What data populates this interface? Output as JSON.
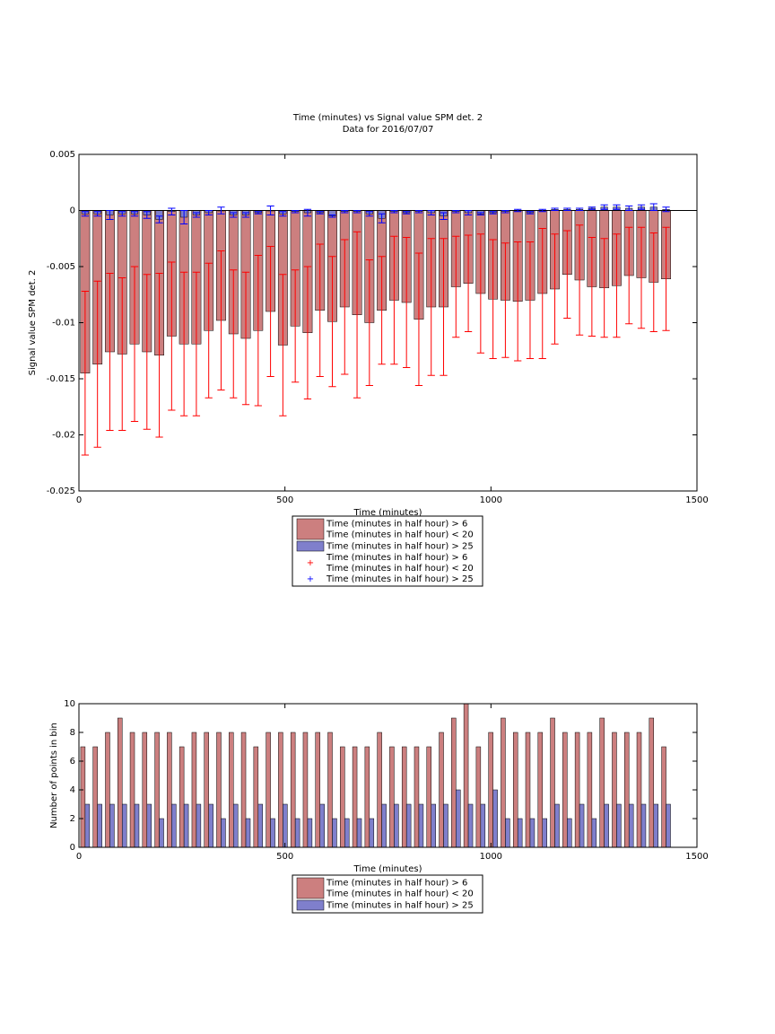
{
  "chart_data": [
    {
      "type": "bar",
      "barmode": "overlay",
      "title": "Time (minutes) vs Signal value SPM det. 2",
      "subtitle": "Data for 2016/07/07",
      "xlabel": "Time (minutes)",
      "ylabel": "Signal value SPM det. 2",
      "x": [
        15,
        45,
        75,
        105,
        135,
        165,
        195,
        225,
        255,
        285,
        315,
        345,
        375,
        405,
        435,
        465,
        495,
        525,
        555,
        585,
        615,
        645,
        675,
        705,
        735,
        765,
        795,
        825,
        855,
        885,
        915,
        945,
        975,
        1005,
        1035,
        1065,
        1095,
        1125,
        1155,
        1185,
        1215,
        1245,
        1275,
        1305,
        1335,
        1365,
        1395,
        1425
      ],
      "xlim": [
        0,
        1500
      ],
      "xticks": [
        0,
        500,
        1000,
        1500
      ],
      "ylim": [
        -0.025,
        0.005
      ],
      "yticks": [
        -0.025,
        -0.02,
        -0.015,
        -0.01,
        -0.005,
        0,
        0.005
      ],
      "zero_line": true,
      "series": [
        {
          "name": "Time (minutes in half hour) > 6\nTime (minutes in half hour) < 20",
          "color": "#cc7f7f",
          "error_color": "#ff0000",
          "values": [
            -0.0145,
            -0.0137,
            -0.0126,
            -0.0128,
            -0.0119,
            -0.0126,
            -0.0129,
            -0.0112,
            -0.0119,
            -0.0119,
            -0.0107,
            -0.0098,
            -0.011,
            -0.0114,
            -0.0107,
            -0.009,
            -0.012,
            -0.0103,
            -0.0109,
            -0.0089,
            -0.0099,
            -0.0086,
            -0.0093,
            -0.01,
            -0.0089,
            -0.008,
            -0.0082,
            -0.0097,
            -0.0086,
            -0.0086,
            -0.0068,
            -0.0065,
            -0.0074,
            -0.0079,
            -0.008,
            -0.0081,
            -0.008,
            -0.0074,
            -0.007,
            -0.0057,
            -0.0062,
            -0.0068,
            -0.0069,
            -0.0067,
            -0.0058,
            -0.006,
            -0.0064,
            -0.0061
          ],
          "errors": [
            0.0073,
            0.0074,
            0.007,
            0.0068,
            0.0069,
            0.0069,
            0.0073,
            0.0066,
            0.0064,
            0.0064,
            0.006,
            0.0062,
            0.0057,
            0.0059,
            0.0067,
            0.0058,
            0.0063,
            0.005,
            0.0059,
            0.0059,
            0.0058,
            0.006,
            0.0074,
            0.0056,
            0.0048,
            0.0057,
            0.0058,
            0.0059,
            0.0061,
            0.0061,
            0.0045,
            0.0043,
            0.0053,
            0.0053,
            0.0051,
            0.0053,
            0.0052,
            0.0058,
            0.0049,
            0.0039,
            0.0049,
            0.0044,
            0.0044,
            0.0046,
            0.0043,
            0.0045,
            0.0044,
            0.0046
          ]
        },
        {
          "name": "Time (minutes in half hour) > 25",
          "color": "#7f7fcc",
          "error_color": "#0000ff",
          "values": [
            -0.0003,
            -0.0003,
            -0.0004,
            -0.0003,
            -0.0003,
            -0.0004,
            -0.0008,
            -0.0001,
            -0.0006,
            -0.0004,
            -0.0002,
            0,
            -0.0004,
            -0.0004,
            -0.0002,
            0,
            -0.0003,
            -0.0001,
            -0.0002,
            -0.0002,
            -0.0005,
            -0.0001,
            -0.0001,
            -0.0003,
            -0.0007,
            -0.0001,
            -0.0002,
            -0.0001,
            -0.0002,
            -0.0005,
            -0.0001,
            -0.0002,
            -0.0003,
            -0.0002,
            -0.0001,
            0,
            -0.0002,
            0,
            0.0001,
            0.0001,
            0.0001,
            0.0002,
            0.0003,
            0.0003,
            0.0002,
            0.0003,
            0.0003,
            0.0001
          ],
          "errors": [
            0.0002,
            0.0002,
            0.0004,
            0.0002,
            0.0002,
            0.0003,
            0.0003,
            0.0003,
            0.0006,
            0.0002,
            0.0002,
            0.0003,
            0.0002,
            0.0002,
            0.0001,
            0.0004,
            0.0002,
            0.0001,
            0.0003,
            0.0001,
            0.0001,
            0.0001,
            0.0001,
            0.0002,
            0.0004,
            0.0001,
            0.0001,
            0.0001,
            0.0002,
            0.0003,
            0.0001,
            0.0002,
            0.0001,
            0.0001,
            0.0001,
            0.0001,
            0.0001,
            0.0001,
            0.0001,
            0.0001,
            0.0001,
            0.0001,
            0.0002,
            0.0002,
            0.0002,
            0.0002,
            0.0003,
            0.0002
          ]
        }
      ],
      "errorbar_legend": [
        {
          "name": "Time (minutes in half hour) > 6\nTime (minutes in half hour) < 20",
          "color": "#ff0000",
          "marker": "+"
        },
        {
          "name": "Time (minutes in half hour) > 25",
          "color": "#0000ff",
          "marker": "+"
        }
      ]
    },
    {
      "type": "bar",
      "barmode": "group",
      "xlabel": "Time (minutes)",
      "ylabel": "Number of points in bin",
      "x": [
        15,
        45,
        75,
        105,
        135,
        165,
        195,
        225,
        255,
        285,
        315,
        345,
        375,
        405,
        435,
        465,
        495,
        525,
        555,
        585,
        615,
        645,
        675,
        705,
        735,
        765,
        795,
        825,
        855,
        885,
        915,
        945,
        975,
        1005,
        1035,
        1065,
        1095,
        1125,
        1155,
        1185,
        1215,
        1245,
        1275,
        1305,
        1335,
        1365,
        1395,
        1425
      ],
      "xlim": [
        0,
        1500
      ],
      "xticks": [
        0,
        500,
        1000,
        1500
      ],
      "ylim": [
        0,
        10
      ],
      "yticks": [
        0,
        2,
        4,
        6,
        8,
        10
      ],
      "series": [
        {
          "name": "Time (minutes in half hour) > 6\nTime (minutes in half hour) < 20",
          "color": "#cc7f7f",
          "values": [
            7,
            7,
            8,
            9,
            8,
            8,
            8,
            8,
            7,
            8,
            8,
            8,
            8,
            8,
            7,
            8,
            8,
            8,
            8,
            8,
            8,
            7,
            7,
            7,
            8,
            7,
            7,
            7,
            7,
            8,
            9,
            10,
            7,
            8,
            9,
            8,
            8,
            8,
            9,
            8,
            8,
            8,
            9,
            8,
            8,
            8,
            9,
            7
          ]
        },
        {
          "name": "Time (minutes in half hour) > 25",
          "color": "#7f7fcc",
          "values": [
            3,
            3,
            3,
            3,
            3,
            3,
            2,
            3,
            3,
            3,
            3,
            2,
            3,
            2,
            3,
            2,
            3,
            2,
            2,
            3,
            2,
            2,
            2,
            2,
            3,
            3,
            3,
            3,
            3,
            3,
            4,
            3,
            3,
            4,
            2,
            2,
            2,
            2,
            3,
            2,
            3,
            2,
            3,
            3,
            3,
            3,
            3,
            3
          ]
        }
      ]
    }
  ]
}
